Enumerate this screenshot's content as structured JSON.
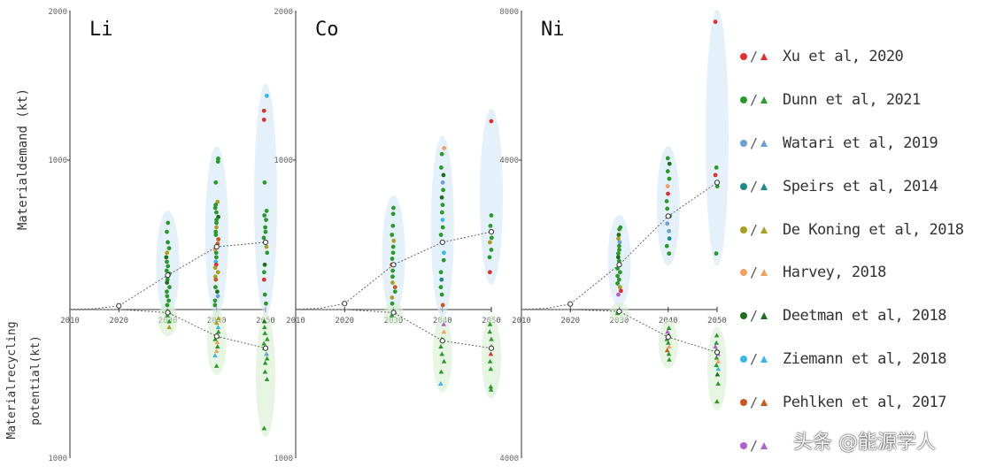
{
  "chart_data": [
    {
      "type": "scatter",
      "panel": "Li",
      "title": "Li",
      "top_axis_label": "2000",
      "mid_axis_label": "1000",
      "bottom_axis_label": "1000",
      "ylim_top": [
        0,
        2000
      ],
      "ylim_bottom": [
        0,
        1000
      ],
      "x_ticks": [
        "2010",
        "2020",
        "2030",
        "2040",
        "2050"
      ],
      "median_demand": [
        [
          2010,
          2
        ],
        [
          2015,
          5
        ],
        [
          2020,
          25
        ],
        [
          2030,
          230
        ],
        [
          2040,
          420
        ],
        [
          2050,
          450
        ]
      ],
      "median_recycling": [
        [
          2010,
          0
        ],
        [
          2020,
          0
        ],
        [
          2030,
          20
        ],
        [
          2040,
          180
        ],
        [
          2050,
          260
        ]
      ],
      "demand_points": {
        "2030": [
          580,
          520,
          450,
          410,
          380,
          350,
          320,
          290,
          260,
          240,
          220,
          200,
          180,
          150,
          120,
          90,
          60,
          30
        ],
        "2040": [
          1010,
          990,
          850,
          720,
          700,
          680,
          650,
          620,
          600,
          580,
          550,
          520,
          500,
          470,
          440,
          400,
          380,
          350,
          320,
          300,
          280,
          250,
          220,
          200,
          150,
          120,
          90,
          60,
          30
        ],
        "2050": [
          1430,
          1330,
          1270,
          850,
          660,
          630,
          600,
          550,
          520,
          480,
          420,
          380,
          300,
          250,
          200,
          100,
          40
        ]
      },
      "recycling_points": {
        "2030": [
          10,
          20,
          40,
          80,
          120
        ],
        "2040": [
          60,
          90,
          120,
          150,
          180,
          200,
          220,
          250,
          280,
          310,
          380
        ],
        "2050": [
          80,
          120,
          160,
          200,
          230,
          260,
          300,
          330,
          360,
          420,
          470,
          800
        ]
      }
    },
    {
      "type": "scatter",
      "panel": "Co",
      "title": "Co",
      "top_axis_label": "2000",
      "mid_axis_label": "1000",
      "bottom_axis_label": "1000",
      "ylim_top": [
        0,
        2000
      ],
      "ylim_bottom": [
        0,
        1000
      ],
      "x_ticks": [
        "2010",
        "2020",
        "2030",
        "2040",
        "2050"
      ],
      "median_demand": [
        [
          2010,
          2
        ],
        [
          2015,
          8
        ],
        [
          2020,
          40
        ],
        [
          2030,
          300
        ],
        [
          2040,
          450
        ],
        [
          2050,
          520
        ]
      ],
      "median_recycling": [
        [
          2010,
          0
        ],
        [
          2020,
          0
        ],
        [
          2030,
          20
        ],
        [
          2040,
          210
        ],
        [
          2050,
          260
        ]
      ],
      "demand_points": {
        "2030": [
          680,
          640,
          560,
          500,
          460,
          420,
          380,
          340,
          300,
          260,
          220,
          180,
          150,
          120,
          80,
          40
        ],
        "2040": [
          1080,
          1040,
          950,
          900,
          850,
          800,
          750,
          700,
          650,
          600,
          550,
          500,
          450,
          380,
          330,
          250,
          200,
          150,
          100,
          30
        ],
        "2050": [
          1260,
          630,
          560,
          520,
          480,
          450,
          400,
          350,
          250
        ]
      },
      "recycling_points": {
        "2030": [
          10,
          20,
          40
        ],
        "2040": [
          100,
          150,
          200,
          250,
          300,
          350,
          420,
          500
        ],
        "2050": [
          100,
          150,
          200,
          250,
          300,
          350,
          400,
          520,
          540
        ]
      }
    },
    {
      "type": "scatter",
      "panel": "Ni",
      "title": "Ni",
      "top_axis_label": "8000",
      "mid_axis_label": "4000",
      "bottom_axis_label": "4000",
      "ylim_top": [
        0,
        8000
      ],
      "ylim_bottom": [
        0,
        4000
      ],
      "x_ticks": [
        "2010",
        "2020",
        "2030",
        "2040",
        "2050"
      ],
      "median_demand": [
        [
          2010,
          5
        ],
        [
          2015,
          30
        ],
        [
          2020,
          150
        ],
        [
          2030,
          1200
        ],
        [
          2040,
          2500
        ],
        [
          2050,
          3400
        ]
      ],
      "median_recycling": [
        [
          2010,
          0
        ],
        [
          2020,
          0
        ],
        [
          2030,
          50
        ],
        [
          2040,
          740
        ],
        [
          2050,
          1150
        ]
      ],
      "demand_points": {
        "2030": [
          2200,
          2150,
          2000,
          1900,
          1800,
          1700,
          1600,
          1500,
          1400,
          1300,
          1200,
          1100,
          1000,
          900,
          800,
          700,
          600,
          500,
          400
        ],
        "2040": [
          4050,
          3900,
          3700,
          3500,
          3300,
          3100,
          2900,
          2700,
          2500,
          2300,
          2100,
          1900,
          1700,
          1500
        ],
        "2050": [
          7700,
          3800,
          3600,
          3300,
          1500
        ]
      },
      "recycling_points": {
        "2030": [
          50,
          100
        ],
        "2040": [
          500,
          600,
          700,
          800,
          900,
          1000,
          1100,
          1200,
          1350
        ],
        "2050": [
          700,
          900,
          1000,
          1100,
          1200,
          1300,
          1400,
          1500,
          1600,
          1750,
          2000,
          2480
        ]
      }
    }
  ],
  "figure": {
    "ylabel_top": "Materialdemand (kt)",
    "ylabel_bottom_line1": "Materialrecycling",
    "ylabel_bottom_line2": "potential(kt)"
  },
  "legend": [
    {
      "label": "Xu et al, 2020",
      "color": "#e03030"
    },
    {
      "label": "Dunn et al, 2021",
      "color": "#2a9a2a"
    },
    {
      "label": "Watari et al, 2019",
      "color": "#6d9fd8"
    },
    {
      "label": "Speirs et al, 2014",
      "color": "#1f8a8a"
    },
    {
      "label": "De Koning et al, 2018",
      "color": "#a8a020"
    },
    {
      "label": "Harvey, 2018",
      "color": "#f0a060"
    },
    {
      "label": "Deetman et al, 2018",
      "color": "#1e6e1e"
    },
    {
      "label": "Ziemann et al, 2018",
      "color": "#3ab8e8"
    },
    {
      "label": "Pehlken et al, 2017",
      "color": "#c85a20"
    },
    {
      "label": "",
      "color": "#b060d0"
    }
  ],
  "watermark": "头条 @能源学人"
}
